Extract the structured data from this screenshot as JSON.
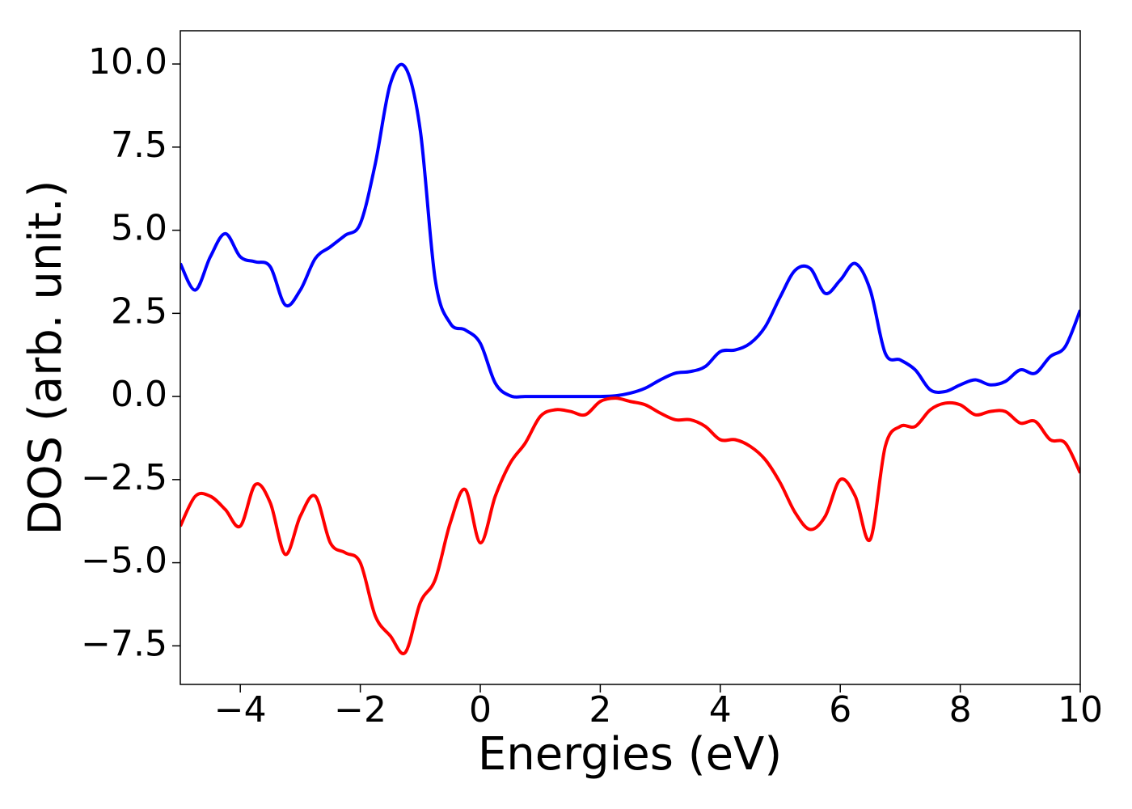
{
  "chart_data": {
    "type": "line",
    "xlabel": "Energies (eV)",
    "ylabel": "DOS (arb. unit.)",
    "x": [
      -5,
      -4.75,
      -4.5,
      -4.25,
      -4,
      -3.75,
      -3.5,
      -3.25,
      -3,
      -2.75,
      -2.5,
      -2.25,
      -2,
      -1.75,
      -1.5,
      -1.25,
      -1,
      -0.75,
      -0.5,
      -0.25,
      0,
      0.25,
      0.5,
      0.75,
      1,
      1.25,
      1.5,
      1.75,
      2,
      2.25,
      2.5,
      2.75,
      3,
      3.25,
      3.5,
      3.75,
      4,
      4.25,
      4.5,
      4.75,
      5,
      5.25,
      5.5,
      5.75,
      6,
      6.25,
      6.5,
      6.75,
      7,
      7.25,
      7.5,
      7.75,
      8,
      8.25,
      8.5,
      8.75,
      9,
      9.25,
      9.5,
      9.75,
      10
    ],
    "series": [
      {
        "color": "#0000ff",
        "values": [
          4.0,
          3.2,
          4.2,
          4.9,
          4.2,
          4.05,
          3.9,
          2.75,
          3.2,
          4.15,
          4.5,
          4.85,
          5.2,
          7.0,
          9.4,
          9.9,
          8.0,
          3.5,
          2.2,
          2.0,
          1.6,
          0.4,
          0.02,
          0,
          0,
          0,
          0,
          0,
          0,
          0.02,
          0.1,
          0.25,
          0.5,
          0.7,
          0.75,
          0.9,
          1.35,
          1.4,
          1.6,
          2.1,
          3.0,
          3.8,
          3.85,
          3.1,
          3.5,
          4.0,
          3.2,
          1.3,
          1.1,
          0.8,
          0.2,
          0.15,
          0.35,
          0.5,
          0.35,
          0.45,
          0.8,
          0.7,
          1.2,
          1.5,
          2.6
        ]
      },
      {
        "color": "#ff0000",
        "values": [
          -3.9,
          -3.0,
          -3.0,
          -3.4,
          -3.9,
          -2.65,
          -3.2,
          -4.75,
          -3.6,
          -3.0,
          -4.4,
          -4.7,
          -5.0,
          -6.6,
          -7.2,
          -7.7,
          -6.2,
          -5.5,
          -3.8,
          -2.8,
          -4.4,
          -3.0,
          -2.0,
          -1.4,
          -0.6,
          -0.4,
          -0.45,
          -0.55,
          -0.15,
          -0.05,
          -0.15,
          -0.25,
          -0.5,
          -0.7,
          -0.7,
          -0.9,
          -1.3,
          -1.3,
          -1.5,
          -1.9,
          -2.6,
          -3.5,
          -4.0,
          -3.6,
          -2.5,
          -3.0,
          -4.3,
          -1.5,
          -0.9,
          -0.9,
          -0.4,
          -0.2,
          -0.25,
          -0.55,
          -0.45,
          -0.45,
          -0.8,
          -0.75,
          -1.3,
          -1.4,
          -2.3
        ]
      }
    ],
    "xlim": [
      -5,
      10
    ],
    "xticks": [
      {
        "value": -4,
        "label": "−4"
      },
      {
        "value": -2,
        "label": "−2"
      },
      0,
      2,
      4,
      6,
      8,
      10
    ],
    "ylim": [
      -8.66,
      11.0
    ],
    "yticks": [
      {
        "value": -7.5,
        "label": "−7.5"
      },
      {
        "value": -5,
        "label": "−5.0"
      },
      {
        "value": -2.5,
        "label": "−2.5"
      },
      {
        "value": 0,
        "label": "0.0"
      },
      2.5,
      {
        "value": 5,
        "label": "5.0"
      },
      7.5,
      {
        "value": 10,
        "label": "10.0"
      }
    ],
    "grid": false
  }
}
